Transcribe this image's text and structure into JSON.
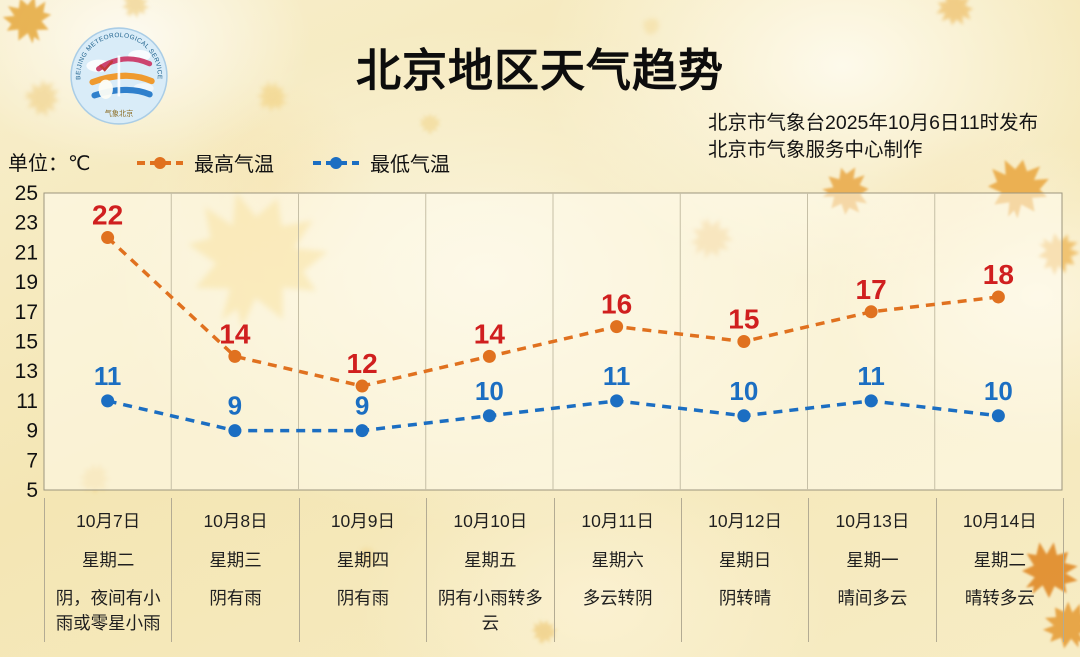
{
  "header": {
    "title": "北京地区天气趋势",
    "publisher_line1": "北京市气象台2025年10月6日11时发布",
    "publisher_line2": "北京市气象服务中心制作",
    "logo_ring_text": "BEIJING METEOROLOGICAL SERVICE",
    "logo_bottom_text": "气象北京"
  },
  "unit_label": "单位：℃",
  "legend": [
    {
      "label": "最高气温",
      "color": "#e0711f"
    },
    {
      "label": "最低气温",
      "color": "#1b6ec2"
    }
  ],
  "chart_data": {
    "type": "line",
    "title": "北京地区天气趋势",
    "categories": [
      "10月7日",
      "10月8日",
      "10月9日",
      "10月10日",
      "10月11日",
      "10月12日",
      "10月13日",
      "10月14日"
    ],
    "weekdays": [
      "星期二",
      "星期三",
      "星期四",
      "星期五",
      "星期六",
      "星期日",
      "星期一",
      "星期二"
    ],
    "weather": [
      "阴，夜间有小雨或零星小雨",
      "阴有雨",
      "阴有雨",
      "阴有小雨转多云",
      "多云转阴",
      "阴转晴",
      "晴间多云",
      "晴转多云"
    ],
    "series": [
      {
        "name": "最高气温",
        "values": [
          22,
          14,
          12,
          14,
          16,
          15,
          17,
          18
        ],
        "line_color": "#e0711f",
        "label_color": "#d01f1f"
      },
      {
        "name": "最低气温",
        "values": [
          11,
          9,
          9,
          10,
          11,
          10,
          11,
          10
        ],
        "line_color": "#1b6ec2",
        "label_color": "#1b6ec2"
      }
    ],
    "ylim": [
      5,
      25
    ],
    "yticks": [
      25,
      23,
      21,
      19,
      17,
      15,
      13,
      11,
      9,
      7,
      5
    ],
    "grid": "vertical-only",
    "line_style": "dashed",
    "legend_position": "top-left"
  }
}
